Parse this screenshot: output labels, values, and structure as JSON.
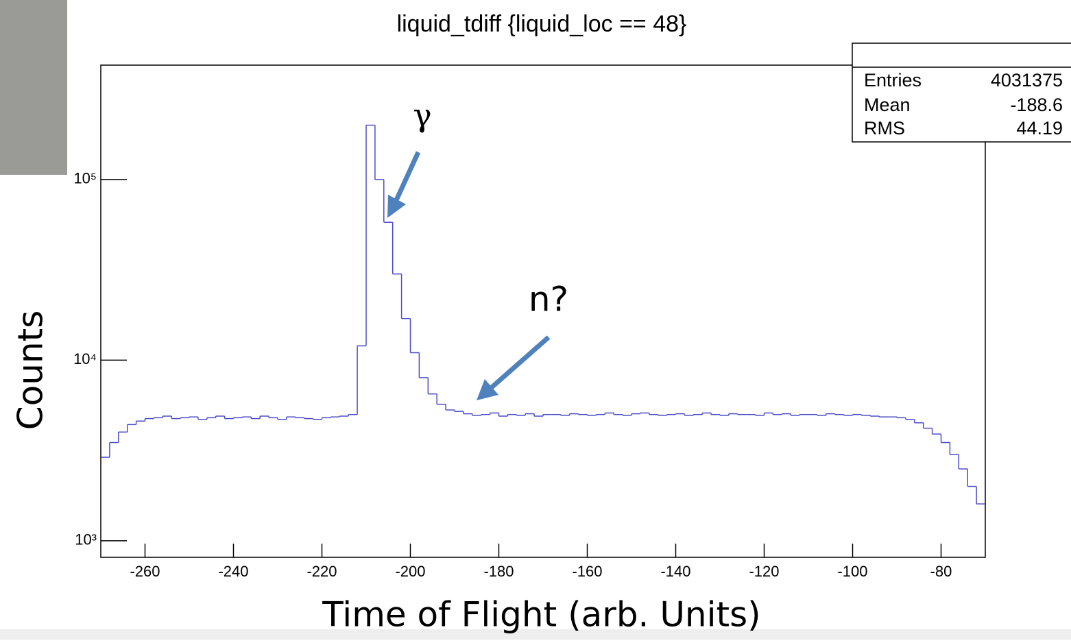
{
  "chart_data": {
    "type": "histogram",
    "title": "liquid_tdiff {liquid_loc == 48}",
    "xlabel": "Time of Flight (arb. Units)",
    "ylabel": "Counts",
    "color": "#4b4bc8",
    "log_y": true,
    "xlim": [
      -270,
      -70
    ],
    "ylim": [
      810,
      430000
    ],
    "xticks": [
      -260,
      -240,
      -220,
      -200,
      -180,
      -160,
      -140,
      -120,
      -100,
      -80
    ],
    "yticks": [
      {
        "value": 1000,
        "label": "10³"
      },
      {
        "value": 10000,
        "label": "10⁴"
      },
      {
        "value": 100000,
        "label": "10⁵"
      }
    ],
    "bins": [
      -270,
      -268,
      -266,
      -264,
      -262,
      -260,
      -258,
      -256,
      -254,
      -252,
      -250,
      -248,
      -246,
      -244,
      -242,
      -240,
      -238,
      -236,
      -234,
      -232,
      -230,
      -228,
      -226,
      -224,
      -222,
      -220,
      -218,
      -216,
      -214,
      -212,
      -210,
      -208,
      -206,
      -204,
      -202,
      -200,
      -198,
      -196,
      -194,
      -192,
      -190,
      -188,
      -186,
      -184,
      -182,
      -180,
      -178,
      -176,
      -174,
      -172,
      -170,
      -168,
      -166,
      -164,
      -162,
      -160,
      -158,
      -156,
      -154,
      -152,
      -150,
      -148,
      -146,
      -144,
      -142,
      -140,
      -138,
      -136,
      -134,
      -132,
      -130,
      -128,
      -126,
      -124,
      -122,
      -120,
      -118,
      -116,
      -114,
      -112,
      -110,
      -108,
      -106,
      -104,
      -102,
      -100,
      -98,
      -96,
      -94,
      -92,
      -90,
      -88,
      -86,
      -84,
      -82,
      -80,
      -78,
      -76,
      -74,
      -72,
      -70
    ],
    "counts": [
      2900,
      3500,
      4000,
      4400,
      4600,
      4750,
      4800,
      4900,
      4750,
      4800,
      4850,
      4700,
      4800,
      4900,
      4750,
      4800,
      4850,
      4750,
      4900,
      4800,
      4700,
      4850,
      4800,
      4750,
      4700,
      4800,
      4850,
      4900,
      5000,
      12000,
      200000,
      100000,
      58000,
      30000,
      17000,
      11000,
      8000,
      6500,
      5700,
      5300,
      5200,
      5050,
      4950,
      5000,
      5100,
      4900,
      5000,
      4950,
      5050,
      4900,
      5000,
      5000,
      4950,
      5050,
      5000,
      4950,
      5000,
      5100,
      5000,
      4950,
      5050,
      5100,
      5000,
      4950,
      5000,
      5050,
      4950,
      5000,
      5100,
      5000,
      4950,
      5050,
      5000,
      5000,
      4950,
      5100,
      5000,
      5050,
      4950,
      5000,
      5000,
      4950,
      5050,
      5000,
      4950,
      5000,
      4950,
      4900,
      4850,
      4850,
      4800,
      4700,
      4500,
      4200,
      3900,
      3500,
      3000,
      2500,
      2000,
      1600
    ],
    "annotations": [
      "γ",
      "n?"
    ],
    "stats": [
      [
        "Entries",
        "4031375"
      ],
      [
        "Mean",
        "-188.6"
      ],
      [
        "RMS",
        "44.19"
      ]
    ]
  }
}
